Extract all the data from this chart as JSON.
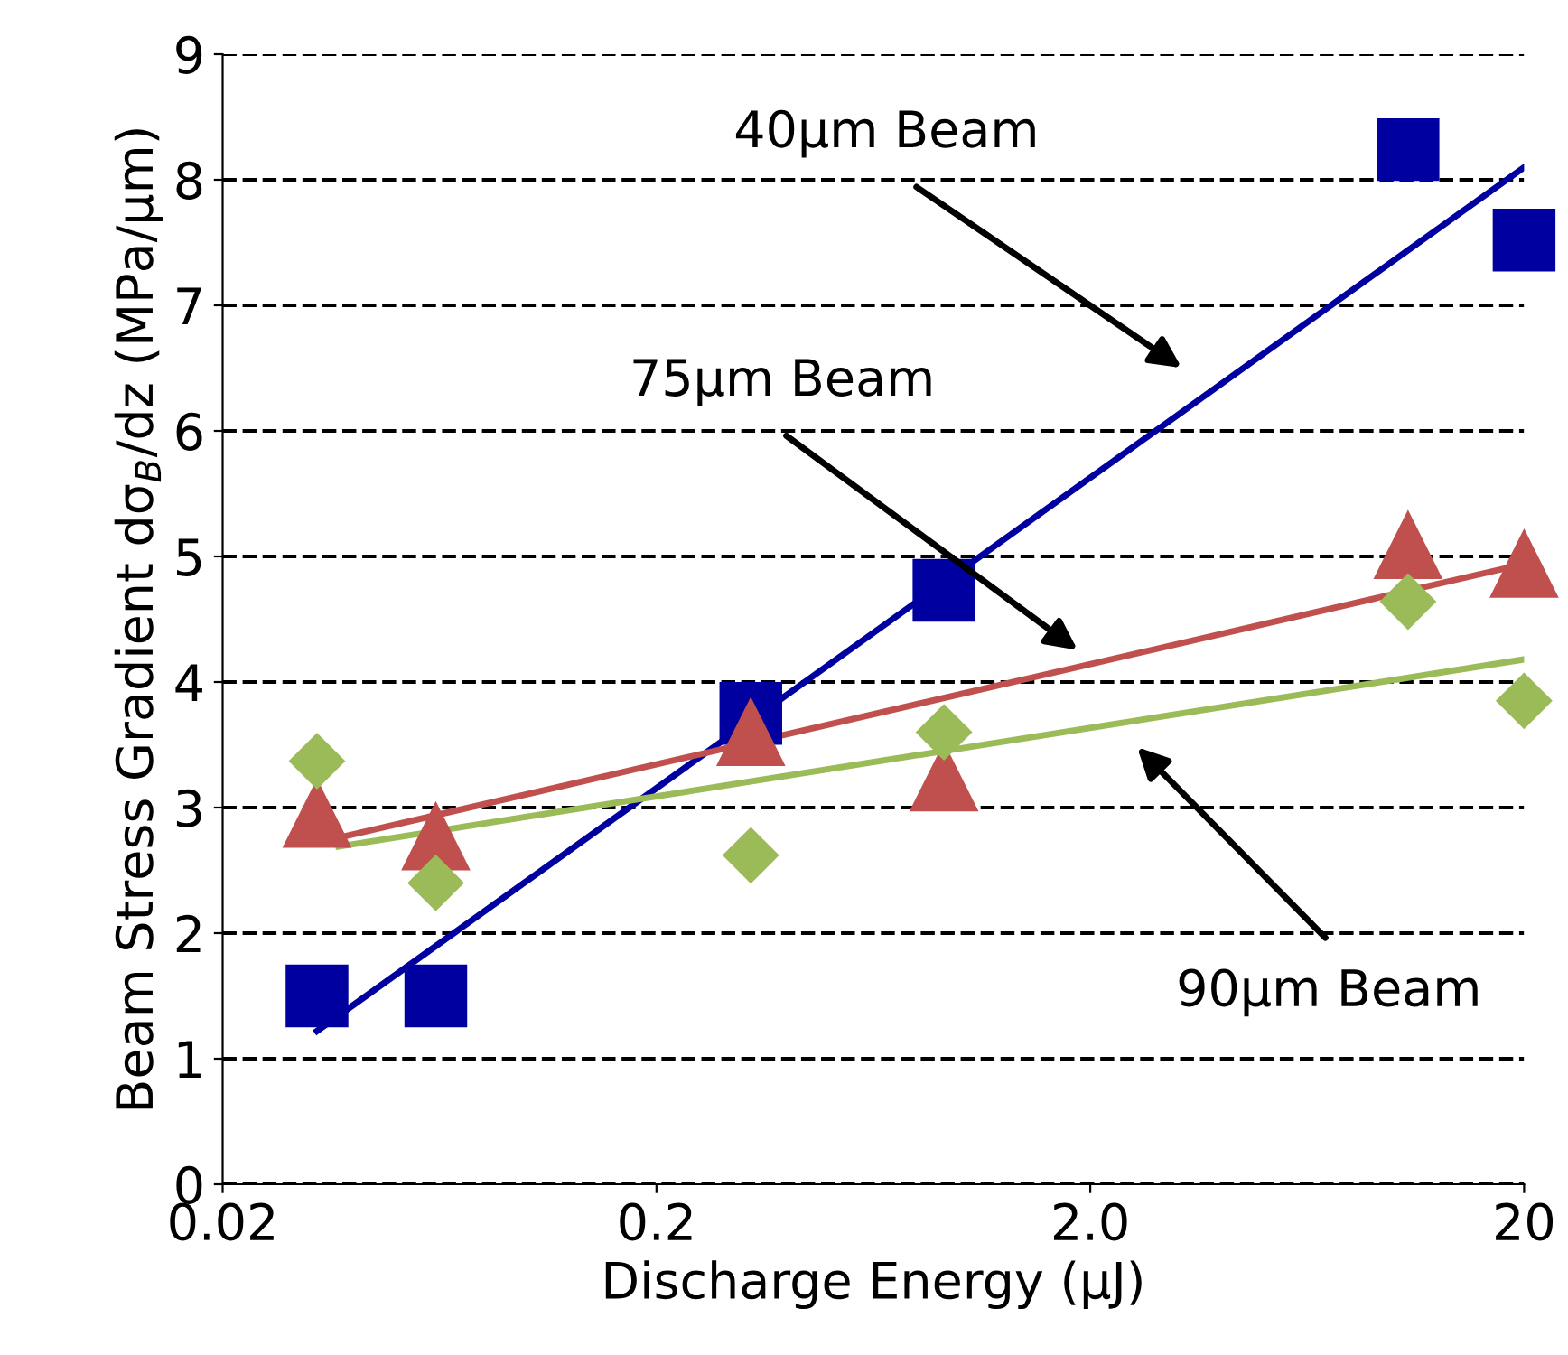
{
  "chart_data": {
    "type": "scatter",
    "xlabel": "Discharge Energy (μJ)",
    "ylabel": "Beam Stress Gradient dσ$_{B}$/dz (MPa/μm)",
    "log": "x",
    "xlim": [
      0.02,
      20
    ],
    "xticks": [
      {
        "value": 0.02,
        "label": "0.02"
      },
      {
        "value": 0.2,
        "label": "0.2"
      },
      {
        "value": 2,
        "label": "2.0"
      },
      {
        "value": 20,
        "label": "20"
      }
    ],
    "ylim": [
      0,
      9
    ],
    "yticks": [
      0,
      1,
      2,
      3,
      4,
      5,
      6,
      7,
      8,
      9
    ],
    "grid": "y",
    "legend": false,
    "series": [
      {
        "marker": "square",
        "color": "#0000a0",
        "x": [
          0.033,
          0.062,
          0.33,
          0.92,
          10.8,
          20
        ],
        "values": [
          1.5,
          1.5,
          3.75,
          4.73,
          8.24,
          7.52
        ]
      },
      {
        "marker": "triangle",
        "color": "#c0504d",
        "x": [
          0.033,
          0.062,
          0.33,
          0.92,
          10.8,
          20
        ],
        "values": [
          2.95,
          2.77,
          3.6,
          3.24,
          5.09,
          4.94
        ]
      },
      {
        "marker": "diamond",
        "color": "#9bbb59",
        "x": [
          0.033,
          0.062,
          0.33,
          0.92,
          10.8,
          20
        ],
        "values": [
          3.37,
          2.4,
          2.62,
          3.6,
          4.64,
          3.85
        ]
      },
      {
        "type": "line",
        "line_style": "solid",
        "marker": "none",
        "color": "#0000a0",
        "x": [
          0.033,
          20
        ],
        "values": [
          1.22,
          8.1
        ]
      },
      {
        "type": "line",
        "line_style": "solid",
        "marker": "none",
        "color": "#c0504d",
        "x": [
          0.037,
          20
        ],
        "values": [
          2.76,
          4.94
        ]
      },
      {
        "type": "line",
        "line_style": "solid",
        "marker": "none",
        "color": "#9bbb59",
        "x": [
          0.037,
          20
        ],
        "values": [
          2.69,
          4.18
        ]
      }
    ],
    "annotations": [
      "40μm Beam",
      "75μm Beam",
      "90μm Beam"
    ]
  }
}
